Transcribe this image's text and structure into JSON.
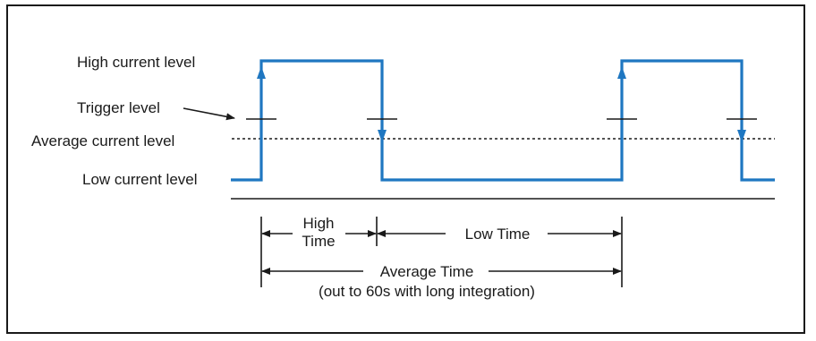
{
  "labels": {
    "high_current": "High current level",
    "trigger": "Trigger level",
    "average_current": "Average current level",
    "low_current": "Low current level"
  },
  "annotations": {
    "high_time_line1": "High",
    "high_time_line2": "Time",
    "low_time": "Low Time",
    "average_time": "Average Time",
    "average_time_note": "(out to 60s with long integration)"
  },
  "colors": {
    "waveform": "#1f77c1",
    "ink": "#1a1a1a"
  }
}
